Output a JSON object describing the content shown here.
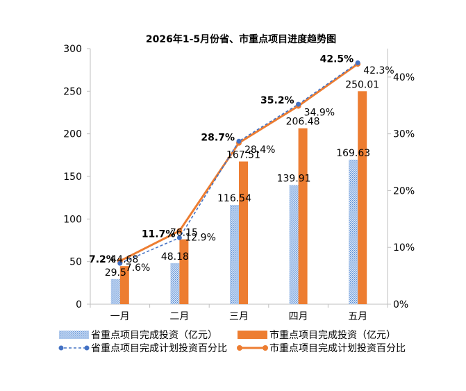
{
  "chart_data": {
    "type": "bar",
    "title": "2026年1-5月份省、市重点项目进度趋势图",
    "categories": [
      "一月",
      "二月",
      "三月",
      "四月",
      "五月"
    ],
    "ylim": [
      0,
      300
    ],
    "y_ticks": [
      "0",
      "50",
      "100",
      "150",
      "200",
      "250",
      "300"
    ],
    "y2lim": [
      0,
      45
    ],
    "y2_ticks": [
      "0%",
      "10%",
      "20%",
      "30%",
      "40%"
    ],
    "grid": false,
    "legend_position": "bottom",
    "series": [
      {
        "name": "省重点项目完成投资（亿元）",
        "kind": "bar",
        "axis": "left",
        "color": "#5b8fd6",
        "pattern": "dotted",
        "values": [
          29.5,
          48.18,
          116.54,
          139.91,
          169.63
        ],
        "labels": [
          "29.5",
          "48.18",
          "116.54",
          "139.91",
          "169.63"
        ]
      },
      {
        "name": "市重点项目完成投资（亿元）",
        "kind": "bar",
        "axis": "left",
        "color": "#ed7d31",
        "values": [
          44.68,
          76.15,
          167.51,
          206.48,
          250.01
        ],
        "labels": [
          "44.68",
          "76.15",
          "167.51",
          "206.48",
          "250.01"
        ]
      },
      {
        "name": "省重点项目完成计划投资百分比",
        "kind": "line",
        "axis": "right",
        "color": "#4472c4",
        "dashed": true,
        "values": [
          7.2,
          11.7,
          28.7,
          35.2,
          42.5
        ],
        "labels": [
          "7.2%",
          "11.7%",
          "28.7%",
          "35.2%",
          "42.5%"
        ]
      },
      {
        "name": "市重点项目完成计划投资百分比",
        "kind": "line",
        "axis": "right",
        "color": "#ed7d31",
        "dashed": false,
        "values": [
          7.6,
          12.9,
          28.4,
          34.9,
          42.3
        ],
        "labels": [
          "7.6%",
          "12.9%",
          "28.4%",
          "34.9%",
          "42.3%"
        ]
      }
    ]
  }
}
